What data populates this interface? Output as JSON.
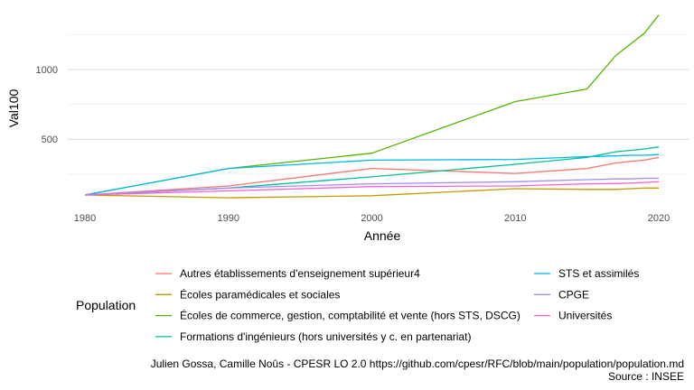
{
  "chart_data": {
    "type": "line",
    "xlabel": "Année",
    "ylabel": "Val100",
    "xlim": [
      1980,
      2020
    ],
    "ylim": [
      0,
      1400
    ],
    "x_ticks": [
      1980,
      1990,
      2000,
      2010,
      2020
    ],
    "y_ticks": [
      500,
      1000
    ],
    "grid": true,
    "legend_title": "Population",
    "legend_position": "bottom",
    "series": [
      {
        "name": "Autres établissements d'enseignement supérieur4",
        "color": "#F8766D",
        "x": [
          1980,
          1990,
          2000,
          2010,
          2015,
          2017,
          2018,
          2019,
          2020
        ],
        "y": [
          100,
          165,
          290,
          255,
          290,
          330,
          340,
          350,
          370
        ]
      },
      {
        "name": "Écoles paramédicales et sociales",
        "color": "#C49A00",
        "x": [
          1980,
          1990,
          2000,
          2010,
          2015,
          2017,
          2018,
          2019,
          2020
        ],
        "y": [
          100,
          80,
          95,
          145,
          140,
          140,
          145,
          150,
          150
        ]
      },
      {
        "name": "Écoles de commerce, gestion, comptabilité et vente (hors STS, DSCG)",
        "color": "#53B400",
        "x": [
          1980,
          1990,
          2000,
          2010,
          2015,
          2017,
          2018,
          2019,
          2020
        ],
        "y": [
          100,
          290,
          400,
          770,
          860,
          1100,
          1180,
          1260,
          1390
        ]
      },
      {
        "name": "Formations d'ingénieurs (hors universités y c. en partenariat)",
        "color": "#00C094",
        "x": [
          1980,
          1990,
          2000,
          2010,
          2015,
          2017,
          2018,
          2019,
          2020
        ],
        "y": [
          100,
          150,
          230,
          320,
          370,
          410,
          420,
          430,
          445
        ]
      },
      {
        "name": "STS et assimilés",
        "color": "#00B6EB",
        "x": [
          1980,
          1990,
          2000,
          2010,
          2015,
          2017,
          2018,
          2019,
          2020
        ],
        "y": [
          100,
          290,
          350,
          355,
          375,
          380,
          385,
          385,
          390
        ]
      },
      {
        "name": "CPGE",
        "color": "#A58AFF",
        "x": [
          1980,
          1990,
          2000,
          2010,
          2015,
          2017,
          2018,
          2019,
          2020
        ],
        "y": [
          100,
          150,
          180,
          195,
          210,
          215,
          215,
          220,
          220
        ]
      },
      {
        "name": "Universités",
        "color": "#FB61D7",
        "x": [
          1980,
          1990,
          2000,
          2010,
          2015,
          2017,
          2018,
          2019,
          2020
        ],
        "y": [
          100,
          130,
          160,
          165,
          180,
          182,
          185,
          190,
          195
        ]
      }
    ],
    "caption_line1": "Julien Gossa, Camille Noûs - CPESR LO 2.0 https://github.com/cpesr/RFC/blob/main/population/population.md",
    "caption_line2": "Source : INSEE"
  }
}
